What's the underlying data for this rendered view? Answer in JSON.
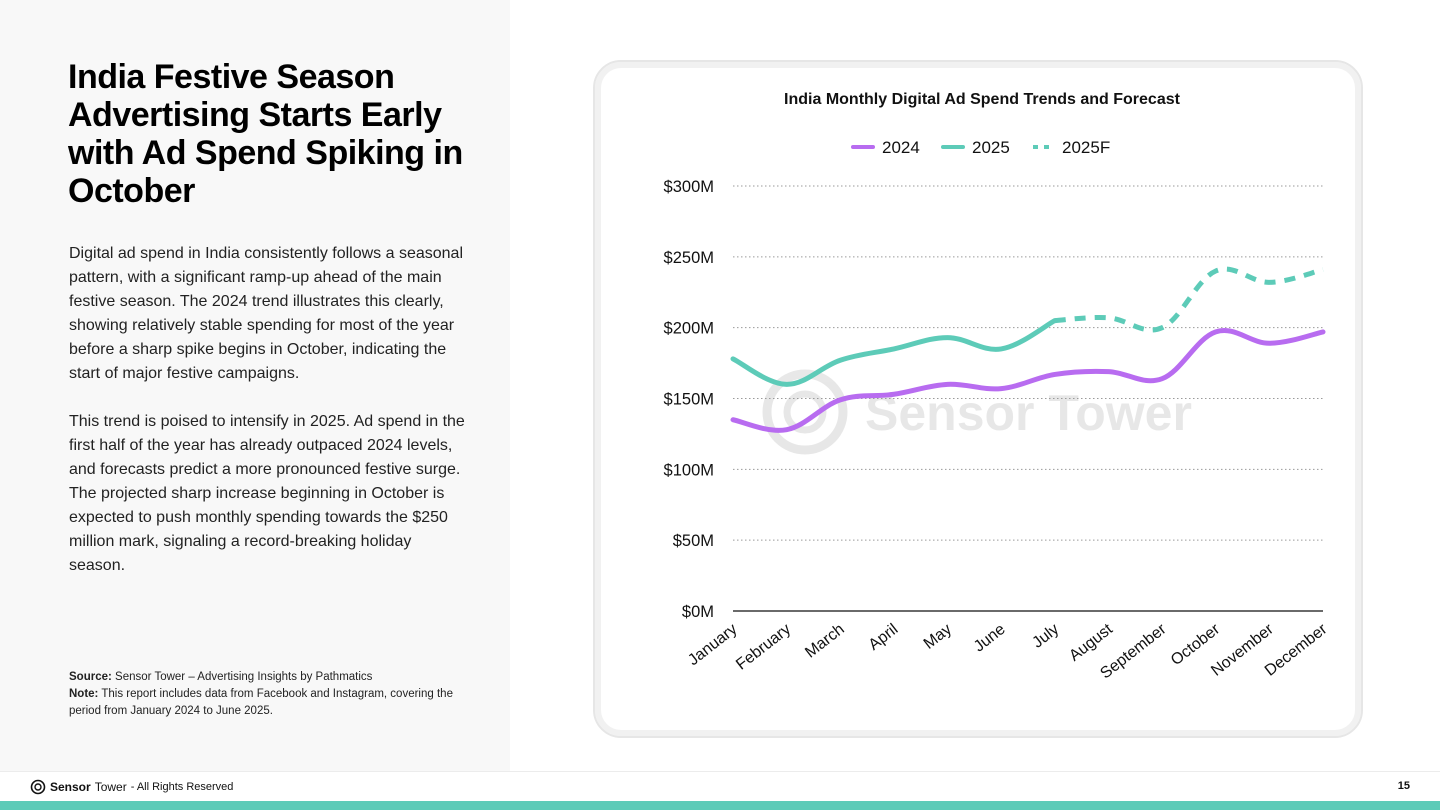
{
  "page": {
    "title": "India Festive Season Advertising Starts Early with Ad Spend Spiking in October",
    "paragraph1": "Digital ad spend in India consistently follows a seasonal pattern, with a significant ramp-up ahead of the main festive season. The 2024 trend illustrates this clearly, showing relatively stable spending for most of the year before a sharp spike begins in October, indicating the start of major festive campaigns.",
    "paragraph2": "This trend is poised to intensify in 2025. Ad spend in the first half of the year has already outpaced 2024 levels, and forecasts predict a more pronounced festive surge. The projected sharp increase beginning in October is expected to push monthly spending towards the $250 million mark, signaling a record-breaking holiday season.",
    "source_label": "Source:",
    "source_text": "Sensor Tower – Advertising Insights by Pathmatics",
    "note_label": "Note:",
    "note_text": "This report includes data from Facebook and Instagram, covering the period from January 2024  to June 2025."
  },
  "footer": {
    "brand_bold": "Sensor",
    "brand_light": "Tower",
    "rights": "- All Rights Reserved",
    "page_number": "15"
  },
  "colors": {
    "s2024": "#b86cf0",
    "s2025": "#5dcbb8",
    "accent_bar": "#5dcbb8",
    "grid": "#9a9a9a"
  },
  "chart_data": {
    "type": "line",
    "title": "India Monthly Digital Ad Spend Trends and Forecast",
    "categories": [
      "January",
      "February",
      "March",
      "April",
      "May",
      "June",
      "July",
      "August",
      "September",
      "October",
      "November",
      "December"
    ],
    "yticks": [
      "$0M",
      "$50M",
      "$100M",
      "$150M",
      "$200M",
      "$250M",
      "$300M"
    ],
    "ylim": [
      0,
      300
    ],
    "grid": true,
    "legend_position": "top-center",
    "watermark": "Sensor Tower",
    "series": [
      {
        "name": "2024",
        "style": "solid",
        "color": "#b86cf0",
        "values": [
          135,
          128,
          149,
          153,
          160,
          157,
          167,
          169,
          164,
          197,
          189,
          197
        ]
      },
      {
        "name": "2025",
        "style": "solid",
        "color": "#5dcbb8",
        "values": [
          178,
          160,
          177,
          185,
          193,
          185,
          205,
          null,
          null,
          null,
          null,
          null
        ]
      },
      {
        "name": "2025F",
        "style": "dashed",
        "color": "#5dcbb8",
        "values": [
          null,
          null,
          null,
          null,
          null,
          null,
          205,
          207,
          200,
          240,
          232,
          241
        ]
      }
    ]
  }
}
